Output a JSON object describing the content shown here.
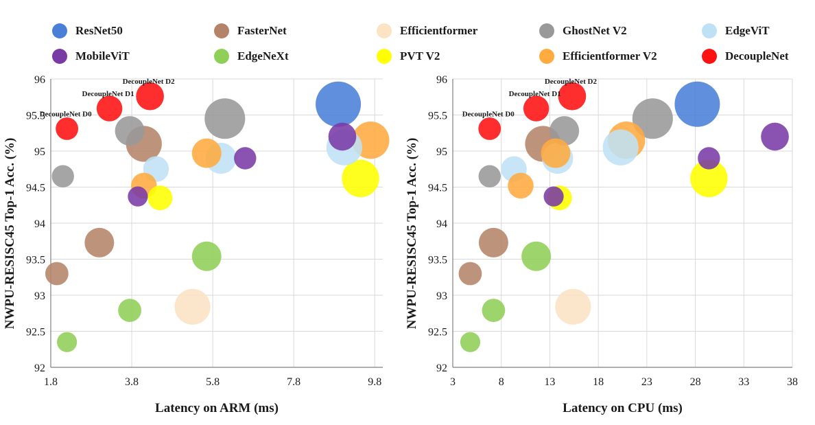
{
  "legend": {
    "items": [
      {
        "label": "ResNet50",
        "color": "#4a7fd8"
      },
      {
        "label": "FasterNet",
        "color": "#b4846a"
      },
      {
        "label": "Efficientformer",
        "color": "#fce3c4"
      },
      {
        "label": "GhostNet V2",
        "color": "#999999"
      },
      {
        "label": "EdgeViT",
        "color": "#bfe1f5"
      },
      {
        "label": "MobileViT",
        "color": "#7a3aa6"
      },
      {
        "label": "EdgeNeXt",
        "color": "#8fcf58"
      },
      {
        "label": "PVT V2",
        "color": "#ffff00"
      },
      {
        "label": "Efficientformer V2",
        "color": "#ffab40"
      },
      {
        "label": "DecoupleNet",
        "color": "#ff1111"
      }
    ]
  },
  "chart_data": [
    {
      "type": "scatter",
      "xlabel": "Latency on ARM (ms)",
      "ylabel": "NWPU-RESISC45 Top-1 Acc. (%)",
      "xlim": [
        1.8,
        10.0
      ],
      "ylim": [
        92,
        96
      ],
      "xticks": [
        "1.8",
        "3.8",
        "5.8",
        "7.8",
        "9.8"
      ],
      "xtick_values": [
        1.8,
        3.8,
        5.8,
        7.8,
        9.8
      ],
      "yticks": [
        "92",
        "92.5",
        "93",
        "93.5",
        "94",
        "94.5",
        "95",
        "95.5",
        "96"
      ],
      "ytick_values": [
        92,
        92.5,
        93,
        93.5,
        94,
        94.5,
        95,
        95.5,
        96
      ],
      "grid": true,
      "points": [
        {
          "series": "ResNet50",
          "x": 8.9,
          "y": 95.65,
          "size": 100
        },
        {
          "series": "FasterNet",
          "x": 4.1,
          "y": 95.1,
          "size": 70
        },
        {
          "series": "FasterNet",
          "x": 3.0,
          "y": 93.73,
          "size": 50
        },
        {
          "series": "FasterNet",
          "x": 1.95,
          "y": 93.3,
          "size": 30
        },
        {
          "series": "Efficientformer",
          "x": 5.3,
          "y": 92.84,
          "size": 70
        },
        {
          "series": "GhostNet V2",
          "x": 6.1,
          "y": 95.45,
          "size": 85
        },
        {
          "series": "GhostNet V2",
          "x": 3.75,
          "y": 95.28,
          "size": 50
        },
        {
          "series": "GhostNet V2",
          "x": 2.1,
          "y": 94.65,
          "size": 27
        },
        {
          "series": "EdgeViT",
          "x": 9.05,
          "y": 95.05,
          "size": 70
        },
        {
          "series": "EdgeViT",
          "x": 6.0,
          "y": 94.9,
          "size": 55
        },
        {
          "series": "EdgeViT",
          "x": 4.4,
          "y": 94.75,
          "size": 38
        },
        {
          "series": "MobileViT",
          "x": 9.0,
          "y": 95.2,
          "size": 45
        },
        {
          "series": "MobileViT",
          "x": 6.6,
          "y": 94.9,
          "size": 27
        },
        {
          "series": "MobileViT",
          "x": 3.95,
          "y": 94.37,
          "size": 20
        },
        {
          "series": "EdgeNeXt",
          "x": 5.65,
          "y": 93.54,
          "size": 50
        },
        {
          "series": "EdgeNeXt",
          "x": 3.75,
          "y": 92.79,
          "size": 30
        },
        {
          "series": "EdgeNeXt",
          "x": 2.2,
          "y": 92.35,
          "size": 20
        },
        {
          "series": "PVT V2",
          "x": 9.45,
          "y": 94.62,
          "size": 75
        },
        {
          "series": "PVT V2",
          "x": 4.5,
          "y": 94.35,
          "size": 35
        },
        {
          "series": "Efficientformer V2",
          "x": 9.7,
          "y": 95.15,
          "size": 75
        },
        {
          "series": "Efficientformer V2",
          "x": 5.65,
          "y": 94.97,
          "size": 50
        },
        {
          "series": "Efficientformer V2",
          "x": 4.1,
          "y": 94.52,
          "size": 38
        },
        {
          "series": "DecoupleNet",
          "x": 4.25,
          "y": 95.76,
          "size": 45
        },
        {
          "series": "DecoupleNet",
          "x": 3.25,
          "y": 95.59,
          "size": 38
        },
        {
          "series": "DecoupleNet",
          "x": 2.2,
          "y": 95.31,
          "size": 28
        }
      ],
      "annotations": [
        {
          "text": "DecoupleNet D2",
          "x": 4.25,
          "y": 95.76
        },
        {
          "text": "DecoupleNet D1",
          "x": 3.25,
          "y": 95.59
        },
        {
          "text": "DecoupleNet D0",
          "x": 2.2,
          "y": 95.31
        }
      ]
    },
    {
      "type": "scatter",
      "xlabel": "Latency on CPU (ms)",
      "ylabel": "NWPU-RESISC45 Top-1 Acc. (%)",
      "xlim": [
        3,
        38
      ],
      "ylim": [
        92,
        96
      ],
      "xticks": [
        "3",
        "8",
        "13",
        "18",
        "23",
        "28",
        "33",
        "38"
      ],
      "xtick_values": [
        3,
        8,
        13,
        18,
        23,
        28,
        33,
        38
      ],
      "yticks": [
        "92",
        "92.5",
        "93",
        "93.5",
        "94",
        "94.5",
        "95",
        "95.5",
        "96"
      ],
      "ytick_values": [
        92,
        92.5,
        93,
        93.5,
        94,
        94.5,
        95,
        95.5,
        96
      ],
      "grid": true,
      "points": [
        {
          "series": "ResNet50",
          "x": 28.2,
          "y": 95.65,
          "size": 100
        },
        {
          "series": "FasterNet",
          "x": 12.3,
          "y": 95.1,
          "size": 70
        },
        {
          "series": "FasterNet",
          "x": 7.2,
          "y": 93.73,
          "size": 50
        },
        {
          "series": "FasterNet",
          "x": 4.8,
          "y": 93.3,
          "size": 30
        },
        {
          "series": "Efficientformer",
          "x": 15.4,
          "y": 92.84,
          "size": 70
        },
        {
          "series": "GhostNet V2",
          "x": 23.6,
          "y": 95.45,
          "size": 85
        },
        {
          "series": "GhostNet V2",
          "x": 14.5,
          "y": 95.28,
          "size": 50
        },
        {
          "series": "GhostNet V2",
          "x": 6.8,
          "y": 94.65,
          "size": 27
        },
        {
          "series": "EdgeViT",
          "x": 20.3,
          "y": 95.05,
          "size": 70
        },
        {
          "series": "EdgeViT",
          "x": 13.8,
          "y": 94.9,
          "size": 55
        },
        {
          "series": "EdgeViT",
          "x": 9.3,
          "y": 94.75,
          "size": 38
        },
        {
          "series": "MobileViT",
          "x": 36.2,
          "y": 95.2,
          "size": 45
        },
        {
          "series": "MobileViT",
          "x": 29.4,
          "y": 94.9,
          "size": 27
        },
        {
          "series": "MobileViT",
          "x": 13.4,
          "y": 94.37,
          "size": 20
        },
        {
          "series": "EdgeNeXt",
          "x": 11.6,
          "y": 93.54,
          "size": 50
        },
        {
          "series": "EdgeNeXt",
          "x": 7.2,
          "y": 92.79,
          "size": 30
        },
        {
          "series": "EdgeNeXt",
          "x": 4.8,
          "y": 92.35,
          "size": 20
        },
        {
          "series": "PVT V2",
          "x": 29.4,
          "y": 94.62,
          "size": 75
        },
        {
          "series": "PVT V2",
          "x": 14.0,
          "y": 94.35,
          "size": 35
        },
        {
          "series": "Efficientformer V2",
          "x": 20.9,
          "y": 95.15,
          "size": 75
        },
        {
          "series": "Efficientformer V2",
          "x": 13.6,
          "y": 94.97,
          "size": 50
        },
        {
          "series": "Efficientformer V2",
          "x": 10.0,
          "y": 94.52,
          "size": 38
        },
        {
          "series": "DecoupleNet",
          "x": 15.3,
          "y": 95.76,
          "size": 45
        },
        {
          "series": "DecoupleNet",
          "x": 11.6,
          "y": 95.59,
          "size": 38
        },
        {
          "series": "DecoupleNet",
          "x": 6.8,
          "y": 95.31,
          "size": 28
        }
      ],
      "annotations": [
        {
          "text": "DecoupleNet D2",
          "x": 15.3,
          "y": 95.76
        },
        {
          "text": "DecoupleNet D1",
          "x": 11.6,
          "y": 95.59
        },
        {
          "text": "DecoupleNet D0",
          "x": 6.8,
          "y": 95.31
        }
      ]
    }
  ]
}
